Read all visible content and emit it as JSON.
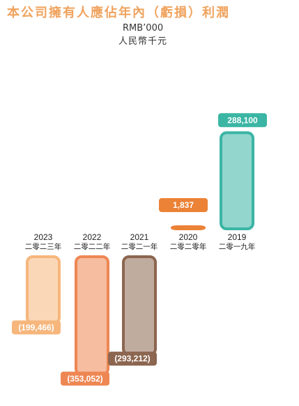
{
  "title": "本公司擁有人應佔年內（虧損）利潤",
  "unit_en": "RMB’000",
  "unit_zh": "人民幣千元",
  "chart_data": {
    "type": "bar",
    "title": "本公司擁有人應佔年內（虧損）利潤",
    "ylabel": "RMB’000 人民幣千元",
    "categories": [
      "2023",
      "2022",
      "2021",
      "2020",
      "2019"
    ],
    "categories_zh": [
      "二零二三年",
      "二零二二年",
      "二零二一年",
      "二零二零年",
      "二零一九年"
    ],
    "values": [
      -199466,
      -353052,
      -293212,
      1837,
      288100
    ],
    "labels": [
      "(199,466)",
      "(353,052)",
      "(293,212)",
      "1,837",
      "288,100"
    ],
    "colors": [
      "#F6B67C",
      "#EE8753",
      "#8C6650",
      "#EB8236",
      "#3BB5A4"
    ]
  }
}
